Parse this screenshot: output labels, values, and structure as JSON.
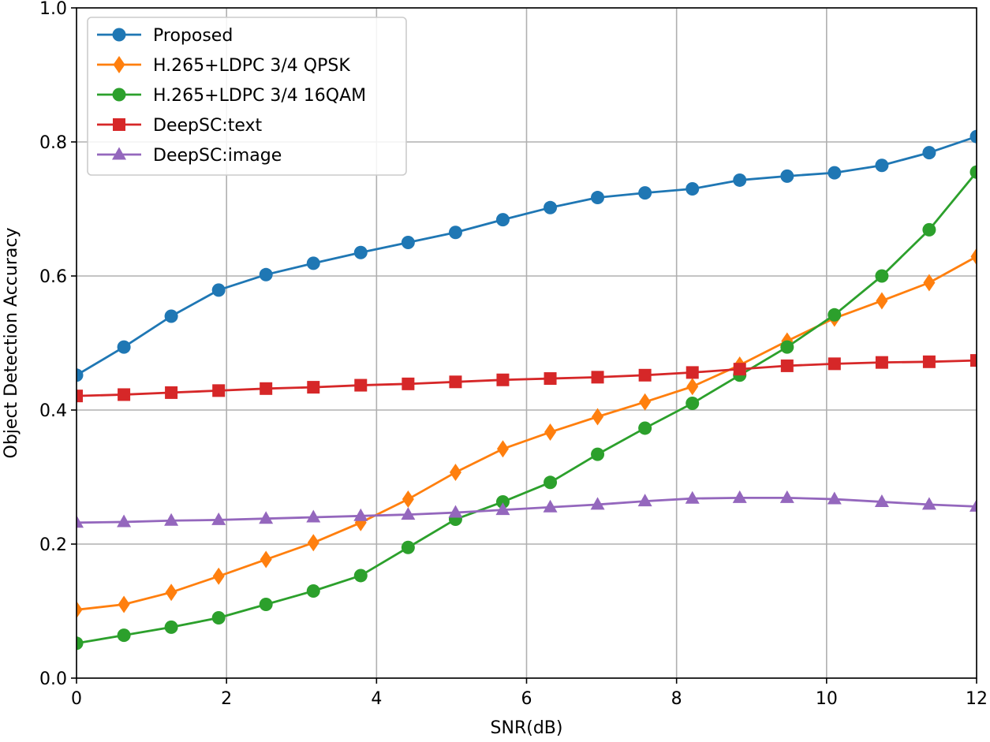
{
  "chart_data": {
    "type": "line",
    "xlabel": "SNR(dB)",
    "ylabel": "Object Detection Accuracy",
    "xlim": [
      0,
      12
    ],
    "ylim": [
      0,
      1.0
    ],
    "xticks": [
      0,
      2,
      4,
      6,
      8,
      10,
      12
    ],
    "yticks": [
      0.0,
      0.2,
      0.4,
      0.6,
      0.8,
      1.0
    ],
    "xtick_labels": [
      "0",
      "2",
      "4",
      "6",
      "8",
      "10",
      "12"
    ],
    "ytick_labels": [
      "0.0",
      "0.2",
      "0.4",
      "0.6",
      "0.8",
      "1.0"
    ],
    "grid": true,
    "legend_position": "top-left",
    "x": [
      0,
      0.632,
      1.263,
      1.895,
      2.526,
      3.158,
      3.789,
      4.421,
      5.053,
      5.684,
      6.316,
      6.947,
      7.579,
      8.211,
      8.842,
      9.474,
      10.105,
      10.737,
      11.368,
      12.0
    ],
    "series": [
      {
        "name": "Proposed",
        "color": "#1f77b4",
        "marker": "circle",
        "values": [
          0.452,
          0.494,
          0.54,
          0.579,
          0.602,
          0.619,
          0.635,
          0.65,
          0.665,
          0.684,
          0.702,
          0.717,
          0.724,
          0.73,
          0.743,
          0.749,
          0.754,
          0.765,
          0.784,
          0.808
        ]
      },
      {
        "name": "H.265+LDPC 3/4 QPSK",
        "color": "#ff7f0e",
        "marker": "diamond",
        "values": [
          0.102,
          0.11,
          0.128,
          0.152,
          0.177,
          0.202,
          0.232,
          0.267,
          0.307,
          0.342,
          0.367,
          0.39,
          0.412,
          0.435,
          0.467,
          0.503,
          0.537,
          0.563,
          0.59,
          0.629
        ]
      },
      {
        "name": "H.265+LDPC 3/4 16QAM",
        "color": "#2ca02c",
        "marker": "circle",
        "values": [
          0.052,
          0.064,
          0.076,
          0.09,
          0.11,
          0.13,
          0.153,
          0.195,
          0.237,
          0.263,
          0.292,
          0.334,
          0.373,
          0.41,
          0.452,
          0.494,
          0.542,
          0.6,
          0.669,
          0.755
        ]
      },
      {
        "name": "DeepSC:text",
        "color": "#d62728",
        "marker": "square",
        "values": [
          0.421,
          0.423,
          0.426,
          0.429,
          0.432,
          0.434,
          0.437,
          0.439,
          0.442,
          0.445,
          0.447,
          0.449,
          0.452,
          0.456,
          0.461,
          0.466,
          0.469,
          0.471,
          0.472,
          0.474
        ]
      },
      {
        "name": "DeepSC:image",
        "color": "#9467bd",
        "marker": "triangle",
        "values": [
          0.232,
          0.233,
          0.235,
          0.236,
          0.238,
          0.24,
          0.242,
          0.244,
          0.247,
          0.251,
          0.255,
          0.259,
          0.264,
          0.268,
          0.269,
          0.269,
          0.267,
          0.263,
          0.259,
          0.256
        ]
      }
    ]
  }
}
